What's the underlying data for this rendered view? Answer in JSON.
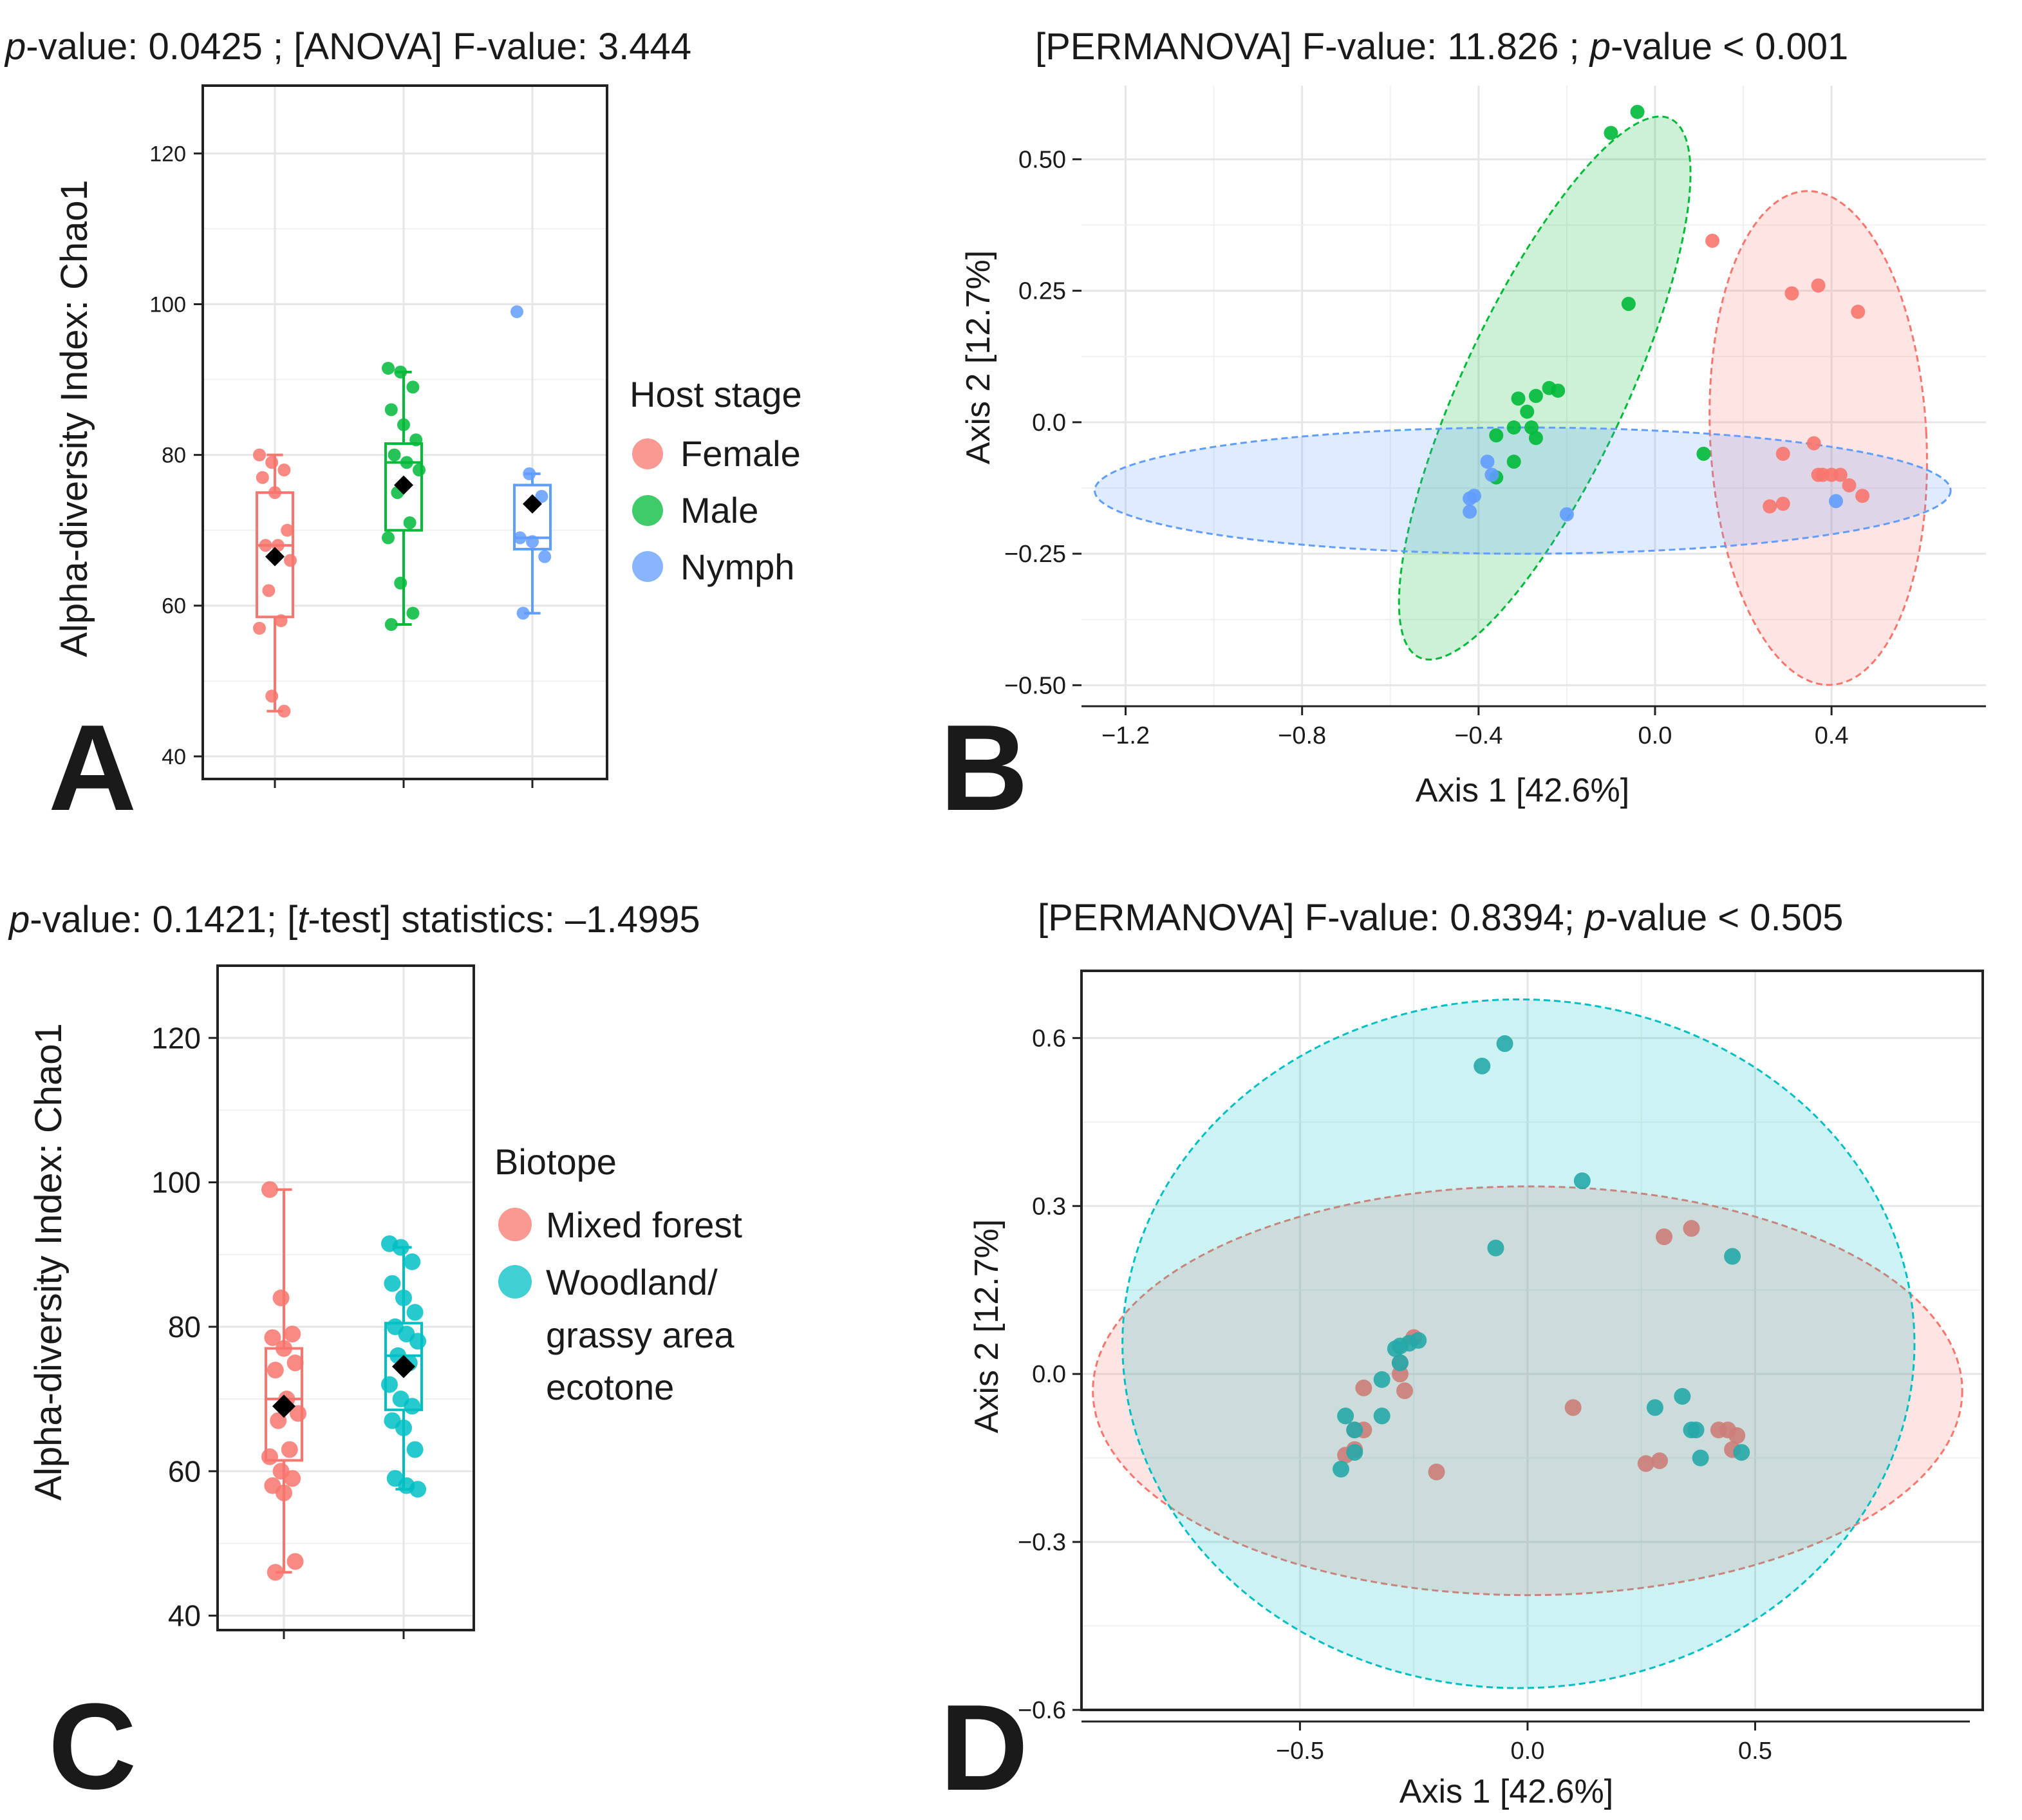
{
  "colors": {
    "female": "#F8766D",
    "male": "#00BA38",
    "nymph": "#619CFF",
    "mixed_forest": "#F8766D",
    "woodland": "#00BFC4",
    "mean_marker": "#000000"
  },
  "chart_data": [
    {
      "panel": "A",
      "type": "box",
      "title_parts": {
        "p": "p",
        "rest": "-value: 0.0425 ; [ANOVA] F-value: 3.444"
      },
      "ylabel": "Alpha-diversity Index: Chao1",
      "ylim": [
        37,
        129
      ],
      "yticks": [
        40,
        60,
        80,
        100,
        120
      ],
      "legend": {
        "title": "Host  stage",
        "entries": [
          "Female",
          "Male",
          "Nymph"
        ]
      },
      "groups": [
        {
          "name": "Female",
          "q1": 58.5,
          "median": 68,
          "q3": 75,
          "whisker_low": 46,
          "whisker_high": 80,
          "mean": 66.5,
          "points": [
            80,
            79,
            78,
            77,
            75,
            70,
            68,
            68,
            66,
            62,
            58,
            57,
            48,
            46
          ]
        },
        {
          "name": "Male",
          "q1": 70,
          "median": 79,
          "q3": 81.5,
          "whisker_low": 57.5,
          "whisker_high": 91,
          "mean": 76,
          "points": [
            91.5,
            91,
            89,
            86,
            84,
            82,
            80,
            79,
            78,
            75,
            71,
            69,
            63,
            59,
            57.5
          ]
        },
        {
          "name": "Nymph",
          "q1": 67.5,
          "median": 69,
          "q3": 76,
          "whisker_low": 59,
          "whisker_high": 77.5,
          "mean": 73.5,
          "points": [
            99,
            77.5,
            74.5,
            69,
            68.5,
            66.5,
            59
          ]
        }
      ]
    },
    {
      "panel": "B",
      "type": "scatter",
      "title_parts": {
        "pre": "[PERMANOVA] F-value: 11.826 ; ",
        "p": "p",
        "post": "-value < 0.001"
      },
      "xlabel": "Axis 1 [42.6%]",
      "ylabel": "Axis 2 [12.7%]",
      "xlim": [
        -1.3,
        0.75
      ],
      "ylim": [
        -0.54,
        0.64
      ],
      "xticks": [
        -1.2,
        -0.8,
        -0.4,
        0.0,
        0.4
      ],
      "xtick_labels": [
        "−1.2",
        "−0.8",
        "−0.4",
        "0.0",
        "0.4"
      ],
      "yticks": [
        -0.5,
        -0.25,
        0.0,
        0.25,
        0.5
      ],
      "ytick_labels": [
        "−0.50",
        "−0.25",
        "0.0",
        "0.25",
        "0.50"
      ],
      "series": [
        {
          "name": "Female",
          "ellipse": {
            "cx": 0.37,
            "cy": -0.03,
            "rx": 0.245,
            "ry": 0.47,
            "angle_deg": -3
          },
          "points": [
            [
              0.13,
              0.345
            ],
            [
              0.31,
              0.245
            ],
            [
              0.37,
              0.26
            ],
            [
              0.46,
              0.21
            ],
            [
              0.29,
              -0.06
            ],
            [
              0.36,
              -0.04
            ],
            [
              0.37,
              -0.1
            ],
            [
              0.38,
              -0.1
            ],
            [
              0.4,
              -0.1
            ],
            [
              0.42,
              -0.1
            ],
            [
              0.44,
              -0.12
            ],
            [
              0.47,
              -0.14
            ],
            [
              0.26,
              -0.16
            ],
            [
              0.29,
              -0.155
            ]
          ]
        },
        {
          "name": "Male",
          "ellipse": {
            "cx": -0.25,
            "cy": 0.065,
            "rx": 0.185,
            "ry": 0.565,
            "angle_deg": 25
          },
          "points": [
            [
              -0.04,
              0.59
            ],
            [
              -0.1,
              0.55
            ],
            [
              -0.06,
              0.225
            ],
            [
              -0.22,
              0.06
            ],
            [
              -0.24,
              0.065
            ],
            [
              -0.27,
              0.05
            ],
            [
              -0.31,
              0.045
            ],
            [
              -0.29,
              0.02
            ],
            [
              -0.32,
              -0.01
            ],
            [
              -0.28,
              -0.01
            ],
            [
              -0.36,
              -0.025
            ],
            [
              -0.27,
              -0.03
            ],
            [
              -0.32,
              -0.075
            ],
            [
              -0.36,
              -0.105
            ],
            [
              0.11,
              -0.06
            ]
          ]
        },
        {
          "name": "Nymph",
          "ellipse": {
            "cx": -0.3,
            "cy": -0.13,
            "rx": 0.97,
            "ry": 0.12,
            "angle_deg": 0
          },
          "points": [
            [
              -0.38,
              -0.075
            ],
            [
              -0.37,
              -0.1
            ],
            [
              -0.41,
              -0.14
            ],
            [
              -0.42,
              -0.145
            ],
            [
              -0.42,
              -0.17
            ],
            [
              -0.2,
              -0.175
            ],
            [
              0.41,
              -0.15
            ]
          ]
        }
      ]
    },
    {
      "panel": "C",
      "type": "box",
      "title_parts": {
        "p": "p",
        "mid": "-value: 0.1421; [",
        "t": "t",
        "rest": "-test] statistics: –1.4995"
      },
      "ylabel": "Alpha-diversity Index: Chao1",
      "ylim": [
        38,
        130
      ],
      "yticks": [
        40,
        60,
        80,
        100,
        120
      ],
      "legend": {
        "title": "Biotope",
        "entries": [
          "Mixed forest",
          "Woodland/",
          "grassy area",
          "ecotone"
        ]
      },
      "groups": [
        {
          "name": "Mixed forest",
          "q1": 61.5,
          "median": 70,
          "q3": 77,
          "whisker_low": 46,
          "whisker_high": 99,
          "mean": 69,
          "points": [
            99,
            84,
            79,
            78.5,
            77,
            75,
            74,
            70,
            68,
            67,
            63,
            62,
            60,
            59,
            58,
            57,
            47.5,
            46
          ]
        },
        {
          "name": "Woodland/grassy area ecotone",
          "q1": 68.5,
          "median": 76,
          "q3": 80.5,
          "whisker_low": 57.5,
          "whisker_high": 91,
          "mean": 74.5,
          "points": [
            91.5,
            91,
            89,
            86,
            84,
            82,
            80,
            79,
            78,
            76,
            75,
            72,
            70,
            69,
            67,
            66,
            63,
            59,
            58,
            57.5
          ]
        }
      ]
    },
    {
      "panel": "D",
      "type": "scatter",
      "title_parts": {
        "pre": "[PERMANOVA] F-value: 0.8394; ",
        "p": "p",
        "post": "-value < 0.505"
      },
      "xlabel": "Axis 1 [42.6%]",
      "ylabel": "Axis 2 [12.7%]",
      "xlim": [
        -0.98,
        1.0
      ],
      "ylim": [
        -0.6,
        0.72
      ],
      "xticks": [
        -0.5,
        0.0,
        0.5
      ],
      "xtick_labels": [
        "−0.5",
        "0.0",
        "0.5"
      ],
      "yticks": [
        -0.6,
        -0.3,
        0.0,
        0.3,
        0.6
      ],
      "ytick_labels": [
        "−0.6",
        "−0.3",
        "0.0",
        "0.3",
        "0.6"
      ],
      "series": [
        {
          "name": "Mixed forest",
          "ellipse": {
            "cx": 0.0,
            "cy": -0.03,
            "rx": 0.955,
            "ry": 0.365,
            "angle_deg": 0
          },
          "points": [
            [
              0.36,
              0.26
            ],
            [
              0.3,
              0.245
            ],
            [
              -0.25,
              0.065
            ],
            [
              -0.28,
              0.02
            ],
            [
              -0.28,
              0.0
            ],
            [
              -0.36,
              -0.025
            ],
            [
              -0.27,
              -0.03
            ],
            [
              0.1,
              -0.06
            ],
            [
              -0.38,
              -0.1
            ],
            [
              -0.36,
              -0.1
            ],
            [
              0.42,
              -0.1
            ],
            [
              0.44,
              -0.1
            ],
            [
              0.46,
              -0.11
            ],
            [
              0.45,
              -0.135
            ],
            [
              -0.38,
              -0.135
            ],
            [
              -0.4,
              -0.145
            ],
            [
              0.26,
              -0.16
            ],
            [
              0.29,
              -0.155
            ],
            [
              -0.2,
              -0.175
            ]
          ]
        },
        {
          "name": "Woodland/grassy area ecotone",
          "ellipse": {
            "cx": -0.02,
            "cy": 0.054,
            "rx": 0.87,
            "ry": 0.615,
            "angle_deg": 0
          },
          "points": [
            [
              -0.05,
              0.59
            ],
            [
              -0.1,
              0.55
            ],
            [
              0.12,
              0.345
            ],
            [
              -0.07,
              0.225
            ],
            [
              0.45,
              0.21
            ],
            [
              -0.24,
              0.06
            ],
            [
              -0.26,
              0.055
            ],
            [
              -0.28,
              0.05
            ],
            [
              -0.29,
              0.045
            ],
            [
              -0.28,
              0.02
            ],
            [
              -0.32,
              -0.01
            ],
            [
              -0.32,
              -0.075
            ],
            [
              -0.4,
              -0.075
            ],
            [
              0.28,
              -0.06
            ],
            [
              0.34,
              -0.04
            ],
            [
              -0.38,
              -0.1
            ],
            [
              0.36,
              -0.1
            ],
            [
              0.37,
              -0.1
            ],
            [
              0.47,
              -0.14
            ],
            [
              0.38,
              -0.15
            ],
            [
              -0.38,
              -0.14
            ],
            [
              -0.41,
              -0.17
            ]
          ]
        }
      ]
    }
  ]
}
